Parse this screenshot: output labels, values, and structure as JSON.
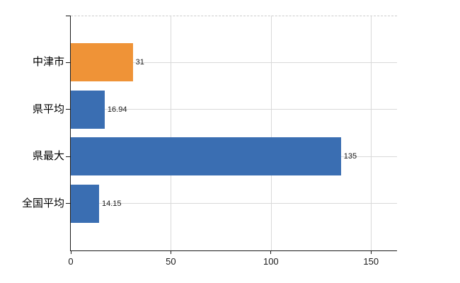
{
  "chart_data": {
    "type": "bar",
    "orientation": "horizontal",
    "title": "",
    "xlabel": "",
    "ylabel": "",
    "categories": [
      "中津市",
      "県平均",
      "県最大",
      "全国平均"
    ],
    "values": [
      31,
      16.94,
      135,
      14.15
    ],
    "value_labels": [
      "31",
      "16.94",
      "135",
      "14.15"
    ],
    "bar_colors": [
      "#EF9337",
      "#3A6EB2",
      "#3A6EB2",
      "#3A6EB2"
    ],
    "x_ticks": [
      0,
      50,
      100,
      150
    ],
    "x_tick_labels": [
      "0",
      "50",
      "100",
      "150"
    ],
    "xlim": [
      0,
      163
    ],
    "grid": "on",
    "legend": "none"
  },
  "colors": {
    "highlight_bar": "#EF9337",
    "default_bar": "#3A6EB2",
    "gridline": "#D9D9D9",
    "axis": "#1A1A1A",
    "top_border_dashed": "#CCCCCC",
    "background": "#FFFFFF",
    "text": "#1A1A1A"
  }
}
